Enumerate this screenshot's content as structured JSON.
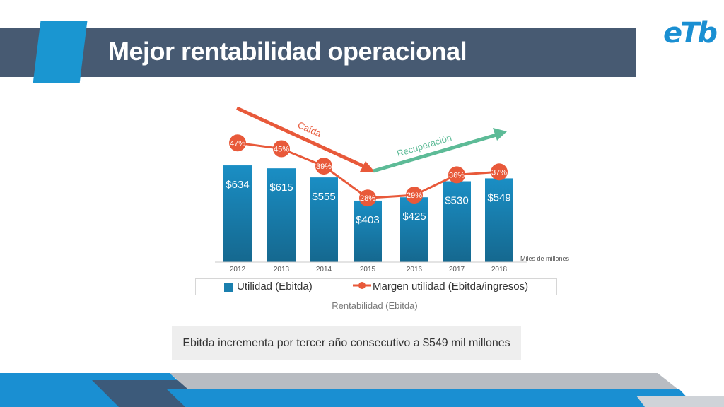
{
  "slide": {
    "title": "Mejor rentabilidad operacional",
    "logo_text": "eTb",
    "note": "Ebitda incrementa por tercer año consecutivo a $549 mil millones"
  },
  "colors": {
    "title_bar": "#475a72",
    "accent": "#1a96d1",
    "bar": "#1a7fae",
    "margin_line": "#e8593a",
    "caida_arrow": "#e8593a",
    "recuperacion_arrow": "#5dbb97",
    "logo": "#1a8fd2"
  },
  "chart_data": {
    "type": "bar",
    "title": "",
    "caption": "Rentabilidad (Ebitda)",
    "units_note": "Miles de millones",
    "categories": [
      "2012",
      "2013",
      "2014",
      "2015",
      "2016",
      "2017",
      "2018"
    ],
    "series": [
      {
        "name": "Utilidad  (Ebitda)",
        "type": "bar",
        "values": [
          634,
          615,
          555,
          403,
          425,
          530,
          549
        ],
        "labels": [
          "$634",
          "$615",
          "$555",
          "$403",
          "$425",
          "$530",
          "$549"
        ]
      },
      {
        "name": "Margen utilidad (Ebitda/ingresos)",
        "type": "line",
        "values": [
          47,
          45,
          39,
          28,
          29,
          36,
          37
        ],
        "labels": [
          "47%",
          "45%",
          "39%",
          "28%",
          "29%",
          "36%",
          "37%"
        ]
      }
    ],
    "annotations": [
      {
        "text": "Caída",
        "direction": "down",
        "from": "2012",
        "to": "2015"
      },
      {
        "text": "Recuperación",
        "direction": "up",
        "from": "2015",
        "to": "2018"
      }
    ],
    "legend": "bottom"
  }
}
